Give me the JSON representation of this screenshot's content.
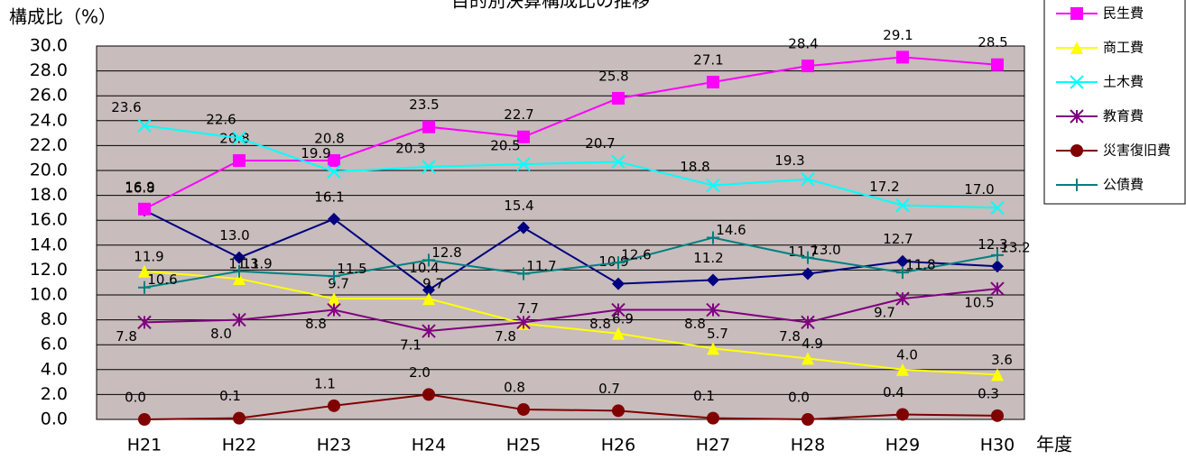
{
  "chart_data": {
    "type": "line",
    "title": "目的別決算構成比の推移",
    "y_label": "構成比（%）",
    "x_label": "年度",
    "categories": [
      "H21",
      "H22",
      "H23",
      "H24",
      "H25",
      "H26",
      "H27",
      "H28",
      "H29",
      "H30"
    ],
    "ylim": [
      0,
      30
    ],
    "yticks": [
      {
        "value": 0,
        "label": "0.0"
      },
      {
        "value": 2,
        "label": "2.0"
      },
      {
        "value": 4,
        "label": "4.0"
      },
      {
        "value": 6,
        "label": "6.0"
      },
      {
        "value": 8,
        "label": "8.0"
      },
      {
        "value": 10,
        "label": "10.0"
      },
      {
        "value": 12,
        "label": "12.0"
      },
      {
        "value": 14,
        "label": "14.0"
      },
      {
        "value": 16,
        "label": "16.0"
      },
      {
        "value": 18,
        "label": "18.0"
      },
      {
        "value": 20,
        "label": "20.0"
      },
      {
        "value": 22,
        "label": "22.0"
      },
      {
        "value": 24,
        "label": "24.0"
      },
      {
        "value": 26,
        "label": "26.0"
      },
      {
        "value": 28,
        "label": "28.0"
      },
      {
        "value": 30,
        "label": "30.0"
      }
    ],
    "grid": true,
    "series": [
      {
        "color": "#000080",
        "marker": "diamond",
        "values": [
          16.8,
          13.0,
          16.1,
          10.4,
          15.4,
          10.9,
          11.2,
          11.7,
          12.7,
          12.3
        ],
        "value_labels": [
          "16.8",
          "13.0",
          "16.1",
          "10.4",
          "15.4",
          "10.9",
          "11.2",
          "11.7",
          "12.7",
          "12.3"
        ]
      },
      {
        "name": "民生費",
        "color": "#ff00ff",
        "marker": "square",
        "values": [
          16.9,
          20.8,
          20.8,
          23.5,
          22.7,
          25.8,
          27.1,
          28.4,
          29.1,
          28.5
        ],
        "value_labels": [
          "16.9",
          "20.8",
          "20.8",
          "23.5",
          "22.7",
          "25.8",
          "27.1",
          "28.4",
          "29.1",
          "28.5"
        ]
      },
      {
        "name": "商工費",
        "color": "#ffff00",
        "marker": "triangle",
        "values": [
          11.9,
          11.3,
          9.7,
          9.7,
          7.7,
          6.9,
          5.7,
          4.9,
          4.0,
          3.6
        ],
        "value_labels": [
          "11.9",
          "11.3",
          "9.7",
          "9.7",
          "7.7",
          "6.9",
          "5.7",
          "4.9",
          "4.0",
          "3.6"
        ]
      },
      {
        "name": "土木費",
        "color": "#00ffff",
        "marker": "x",
        "values": [
          23.6,
          22.6,
          19.9,
          20.3,
          20.5,
          20.7,
          18.8,
          19.3,
          17.2,
          17.0
        ],
        "value_labels": [
          "23.6",
          "22.6",
          "19.9",
          "20.3",
          "20.5",
          "20.7",
          "18.8",
          "19.3",
          "17.2",
          "17.0"
        ]
      },
      {
        "name": "教育費",
        "color": "#800080",
        "marker": "star",
        "values": [
          7.8,
          8.0,
          8.8,
          7.1,
          7.8,
          8.8,
          8.8,
          7.8,
          9.7,
          10.5
        ],
        "value_labels": [
          "7.8",
          "8.0",
          "8.8",
          "7.1",
          "7.8",
          "8.8",
          "8.8",
          "7.8",
          "9.7",
          "10.5"
        ]
      },
      {
        "name": "災害復旧費",
        "color": "#800000",
        "marker": "circle",
        "values": [
          0.0,
          0.1,
          1.1,
          2.0,
          0.8,
          0.7,
          0.1,
          0.0,
          0.4,
          0.3
        ],
        "value_labels": [
          "0.0",
          "0.1",
          "1.1",
          "2.0",
          "0.8",
          "0.7",
          "0.1",
          "0.0",
          "0.4",
          "0.3"
        ]
      },
      {
        "name": "公債費",
        "color": "#008080",
        "marker": "plus",
        "values": [
          10.6,
          11.9,
          11.5,
          12.8,
          11.7,
          12.6,
          14.6,
          13.0,
          11.8,
          13.2
        ],
        "value_labels": [
          "10.6",
          "11.9",
          "11.5",
          "12.8",
          "11.7",
          "12.6",
          "14.6",
          "13.0",
          "11.8",
          "13.2"
        ]
      }
    ]
  }
}
